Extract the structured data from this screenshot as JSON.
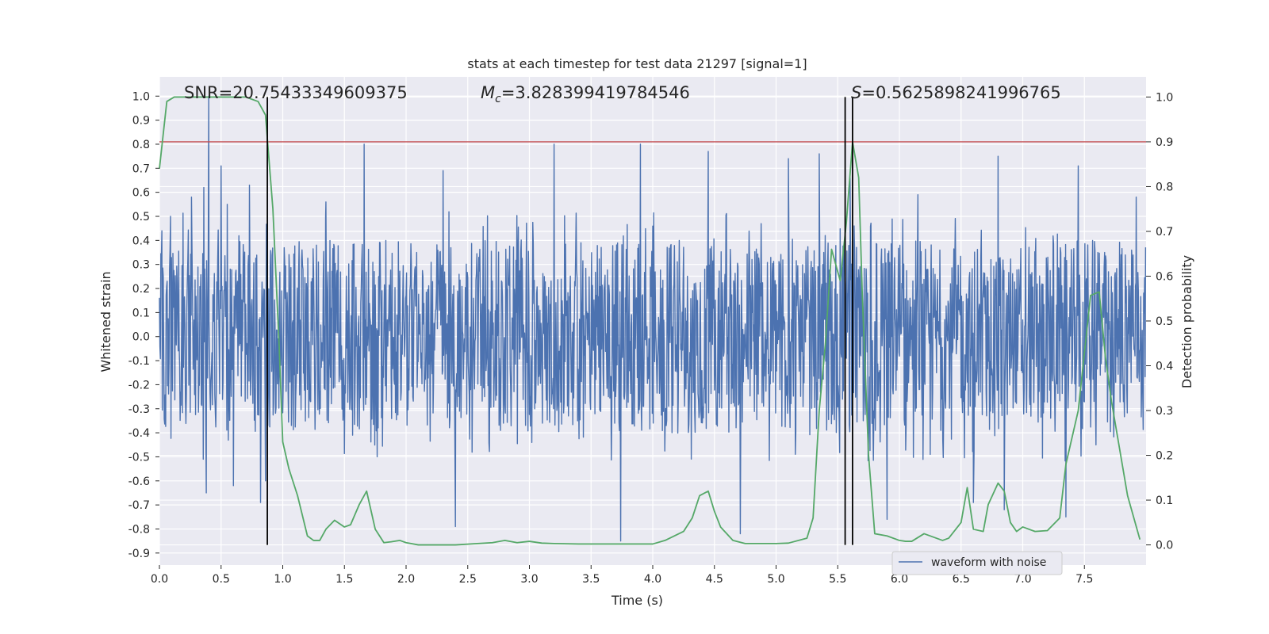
{
  "chart_data": {
    "type": "line",
    "title": "stats at each timestep for test data 21297 [signal=1]",
    "xlabel": "Time (s)",
    "ylabel": "Whitened strain",
    "ylabel_right": "Detection probability",
    "xlim": [
      0.0,
      8.0
    ],
    "ylim": [
      -0.95,
      1.08
    ],
    "ylim_right": [
      -0.045,
      1.045
    ],
    "xticks": [
      "0.0",
      "0.5",
      "1.0",
      "1.5",
      "2.0",
      "2.5",
      "3.0",
      "3.5",
      "4.0",
      "4.5",
      "5.0",
      "5.5",
      "6.0",
      "6.5",
      "7.0",
      "7.5"
    ],
    "yticks_left": [
      "1.0",
      "0.9",
      "0.8",
      "0.7",
      "0.6",
      "0.5",
      "0.4",
      "0.3",
      "0.2",
      "0.1",
      "0.0",
      "-0.1",
      "-0.2",
      "-0.3",
      "-0.4",
      "-0.5",
      "-0.6",
      "-0.7",
      "-0.8",
      "-0.9"
    ],
    "yticks_right": [
      "1.0",
      "0.9",
      "0.8",
      "0.7",
      "0.6",
      "0.5",
      "0.4",
      "0.3",
      "0.2",
      "0.1",
      "0.0"
    ],
    "grid": true,
    "legend_location": "lower-right",
    "legend": [
      "waveform with noise"
    ],
    "annotations": {
      "snr": "SNR=20.75433349609375",
      "mc_symbol": "M",
      "mc_sub": "c",
      "mc_value": "=3.828399419784546",
      "s_symbol": "S",
      "s_value": "=0.5625898241996765"
    },
    "threshold": {
      "axis": "right",
      "value": 0.9,
      "color": "#c44e52"
    },
    "vertical_lines": [
      0.875,
      5.56,
      5.62
    ],
    "waveform": {
      "name": "waveform with noise",
      "axis": "left",
      "color": "#4c72b0",
      "sample_rate": 256,
      "core_amplitude": 0.3,
      "spike_peaks": [
        {
          "x": 0.02,
          "y": 0.44
        },
        {
          "x": 0.09,
          "y": 0.5
        },
        {
          "x": 0.26,
          "y": 0.58
        },
        {
          "x": 0.36,
          "y": 0.62
        },
        {
          "x": 0.4,
          "y": 1.0
        },
        {
          "x": 0.5,
          "y": 0.71
        },
        {
          "x": 0.55,
          "y": 0.55
        },
        {
          "x": 0.73,
          "y": 0.63
        },
        {
          "x": 0.82,
          "y": 0.42
        },
        {
          "x": 1.35,
          "y": 0.56
        },
        {
          "x": 1.66,
          "y": 0.8
        },
        {
          "x": 2.3,
          "y": 0.69
        },
        {
          "x": 3.2,
          "y": 0.8
        },
        {
          "x": 3.9,
          "y": 0.8
        },
        {
          "x": 4.45,
          "y": 0.77
        },
        {
          "x": 5.1,
          "y": 0.74
        },
        {
          "x": 5.35,
          "y": 0.76
        },
        {
          "x": 5.6,
          "y": 0.66
        },
        {
          "x": 6.15,
          "y": 0.59
        },
        {
          "x": 6.8,
          "y": 0.75
        },
        {
          "x": 7.45,
          "y": 0.71
        },
        {
          "x": 7.92,
          "y": 0.58
        }
      ],
      "spike_troughs": [
        {
          "x": 0.38,
          "y": -0.65
        },
        {
          "x": 0.6,
          "y": -0.62
        },
        {
          "x": 0.82,
          "y": -0.69
        },
        {
          "x": 0.86,
          "y": -0.6
        },
        {
          "x": 2.4,
          "y": -0.79
        },
        {
          "x": 3.74,
          "y": -0.85
        },
        {
          "x": 4.71,
          "y": -0.82
        },
        {
          "x": 5.9,
          "y": -0.76
        },
        {
          "x": 6.6,
          "y": -0.69
        },
        {
          "x": 6.85,
          "y": -0.72
        },
        {
          "x": 7.35,
          "y": -0.75
        }
      ]
    },
    "probability": {
      "axis": "right",
      "color": "#55a868",
      "x": [
        0.0,
        0.06,
        0.12,
        0.3,
        0.5,
        0.7,
        0.8,
        0.86,
        0.92,
        0.97,
        1.0,
        1.05,
        1.12,
        1.2,
        1.25,
        1.3,
        1.35,
        1.42,
        1.5,
        1.55,
        1.62,
        1.68,
        1.75,
        1.82,
        1.88,
        1.95,
        2.0,
        2.1,
        2.4,
        2.7,
        2.8,
        2.9,
        3.0,
        3.1,
        3.2,
        3.4,
        3.6,
        4.0,
        4.1,
        4.25,
        4.32,
        4.38,
        4.45,
        4.5,
        4.55,
        4.65,
        4.75,
        5.0,
        5.1,
        5.25,
        5.3,
        5.35,
        5.4,
        5.45,
        5.52,
        5.57,
        5.62,
        5.67,
        5.7,
        5.75,
        5.8,
        5.9,
        6.0,
        6.05,
        6.1,
        6.2,
        6.35,
        6.4,
        6.5,
        6.55,
        6.6,
        6.68,
        6.72,
        6.8,
        6.85,
        6.9,
        6.95,
        7.0,
        7.1,
        7.2,
        7.3,
        7.35,
        7.45,
        7.55,
        7.62,
        7.67,
        7.72,
        7.85,
        7.95
      ],
      "y": [
        0.84,
        0.99,
        1.0,
        1.0,
        1.0,
        1.0,
        0.99,
        0.96,
        0.75,
        0.45,
        0.23,
        0.17,
        0.11,
        0.02,
        0.01,
        0.01,
        0.035,
        0.055,
        0.04,
        0.045,
        0.09,
        0.12,
        0.035,
        0.005,
        0.007,
        0.01,
        0.005,
        0.0,
        0.0,
        0.005,
        0.01,
        0.005,
        0.008,
        0.004,
        0.003,
        0.002,
        0.002,
        0.002,
        0.01,
        0.03,
        0.06,
        0.11,
        0.12,
        0.075,
        0.04,
        0.01,
        0.003,
        0.003,
        0.004,
        0.015,
        0.06,
        0.3,
        0.45,
        0.66,
        0.59,
        0.72,
        0.9,
        0.82,
        0.55,
        0.2,
        0.025,
        0.02,
        0.01,
        0.008,
        0.008,
        0.025,
        0.01,
        0.015,
        0.05,
        0.128,
        0.035,
        0.03,
        0.09,
        0.138,
        0.12,
        0.05,
        0.03,
        0.04,
        0.03,
        0.032,
        0.06,
        0.18,
        0.3,
        0.557,
        0.565,
        0.42,
        0.32,
        0.11,
        0.012
      ]
    }
  }
}
